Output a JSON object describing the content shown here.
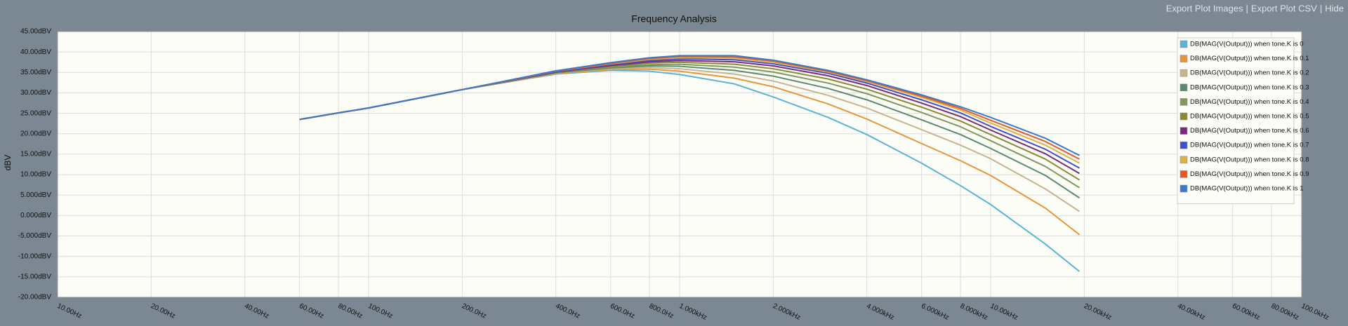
{
  "header": {
    "links": [
      "Export Plot Images",
      "Export Plot CSV",
      "Hide"
    ],
    "separator": "|"
  },
  "chart_data": {
    "type": "line",
    "title": "Frequency Analysis",
    "y_label": "dBV",
    "xscale": "log",
    "grid": true,
    "legend": "upper right",
    "xlim": [
      10,
      100000
    ],
    "ylim": [
      -20,
      45
    ],
    "xticks": [
      {
        "value": 10,
        "label": "10.00Hz"
      },
      {
        "value": 20,
        "label": "20.00Hz"
      },
      {
        "value": 40,
        "label": "40.00Hz"
      },
      {
        "value": 60,
        "label": "60.00Hz"
      },
      {
        "value": 80,
        "label": "80.00Hz"
      },
      {
        "value": 100,
        "label": "100.0Hz"
      },
      {
        "value": 200,
        "label": "200.0Hz"
      },
      {
        "value": 400,
        "label": "400.0Hz"
      },
      {
        "value": 600,
        "label": "600.0Hz"
      },
      {
        "value": 800,
        "label": "800.0Hz"
      },
      {
        "value": 1000,
        "label": "1.000kHz"
      },
      {
        "value": 2000,
        "label": "2.000kHz"
      },
      {
        "value": 4000,
        "label": "4.000kHz"
      },
      {
        "value": 6000,
        "label": "6.000kHz"
      },
      {
        "value": 8000,
        "label": "8.000kHz"
      },
      {
        "value": 10000,
        "label": "10.00kHz"
      },
      {
        "value": 20000,
        "label": "20.00kHz"
      },
      {
        "value": 40000,
        "label": "40.00kHz"
      },
      {
        "value": 60000,
        "label": "60.00kHz"
      },
      {
        "value": 80000,
        "label": "80.00kHz"
      },
      {
        "value": 100000,
        "label": "100.0kHz"
      }
    ],
    "yticks": [
      {
        "value": 45,
        "label": "45.00dBV"
      },
      {
        "value": 40,
        "label": "40.00dBV"
      },
      {
        "value": 35,
        "label": "35.00dBV"
      },
      {
        "value": 30,
        "label": "30.00dBV"
      },
      {
        "value": 25,
        "label": "25.00dBV"
      },
      {
        "value": 20,
        "label": "20.00dBV"
      },
      {
        "value": 15,
        "label": "15.00dBV"
      },
      {
        "value": 10,
        "label": "10.00dBV"
      },
      {
        "value": 5,
        "label": "5.000dBV"
      },
      {
        "value": 0,
        "label": "0.000dBV"
      },
      {
        "value": -5,
        "label": "-5.000dBV"
      },
      {
        "value": -10,
        "label": "-10.00dBV"
      },
      {
        "value": -15,
        "label": "-15.00dBV"
      },
      {
        "value": -20,
        "label": "-20.00dBV"
      }
    ],
    "x": [
      60,
      80,
      100,
      200,
      400,
      600,
      800,
      1000,
      1500,
      2000,
      3000,
      4000,
      6000,
      8000,
      10000,
      15000,
      19300
    ],
    "series": [
      {
        "name": "DB(MAG(V(Output))) when tone.K is 0",
        "color": "#5ab4d6",
        "values": [
          23.5,
          25.1,
          26.3,
          30.8,
          34.6,
          35.5,
          35.3,
          34.5,
          32.2,
          29.0,
          24.0,
          19.8,
          12.8,
          7.3,
          2.7,
          -7.0,
          -13.7
        ]
      },
      {
        "name": "DB(MAG(V(Output))) when tone.K is 0.1",
        "color": "#e8953a",
        "values": [
          23.5,
          25.1,
          26.3,
          30.8,
          34.7,
          35.7,
          35.8,
          35.3,
          33.6,
          31.5,
          27.3,
          23.6,
          17.6,
          13.4,
          9.8,
          1.8,
          -4.7
        ]
      },
      {
        "name": "DB(MAG(V(Output))) when tone.K is 0.2",
        "color": "#c8b48c",
        "values": [
          23.5,
          25.1,
          26.3,
          30.8,
          34.8,
          35.9,
          36.2,
          35.9,
          34.6,
          32.9,
          29.4,
          26.3,
          21.0,
          17.2,
          13.9,
          6.5,
          1.0
        ]
      },
      {
        "name": "DB(MAG(V(Output))) when tone.K is 0.3",
        "color": "#5a8a6e",
        "values": [
          23.5,
          25.1,
          26.3,
          30.8,
          34.9,
          36.1,
          36.6,
          36.5,
          35.5,
          34.1,
          31.1,
          28.3,
          23.4,
          19.8,
          16.4,
          9.8,
          4.3
        ]
      },
      {
        "name": "DB(MAG(V(Output))) when tone.K is 0.4",
        "color": "#7e9a5a",
        "values": [
          23.5,
          25.1,
          26.3,
          30.8,
          35.0,
          36.3,
          36.9,
          37.0,
          36.3,
          35.1,
          32.4,
          29.8,
          25.2,
          21.7,
          18.3,
          12.0,
          6.8
        ]
      },
      {
        "name": "DB(MAG(V(Output))) when tone.K is 0.5",
        "color": "#8a8a30",
        "values": [
          23.5,
          25.1,
          26.3,
          30.8,
          35.0,
          36.5,
          37.3,
          37.5,
          37.0,
          35.9,
          33.4,
          30.9,
          26.5,
          23.1,
          19.8,
          13.8,
          8.7
        ]
      },
      {
        "name": "DB(MAG(V(Output))) when tone.K is 0.6",
        "color": "#7a2a7a",
        "values": [
          23.5,
          25.1,
          26.3,
          30.8,
          35.1,
          36.7,
          37.6,
          37.9,
          37.6,
          36.6,
          34.2,
          31.8,
          27.5,
          24.2,
          20.9,
          15.1,
          10.3
        ]
      },
      {
        "name": "DB(MAG(V(Output))) when tone.K is 0.7",
        "color": "#4050d0",
        "values": [
          23.5,
          25.1,
          26.3,
          30.8,
          35.2,
          36.9,
          37.9,
          38.3,
          38.1,
          37.1,
          34.8,
          32.4,
          28.3,
          25.1,
          21.8,
          16.2,
          11.6
        ]
      },
      {
        "name": "DB(MAG(V(Output))) when tone.K is 0.8",
        "color": "#e0b040",
        "values": [
          23.5,
          25.1,
          26.3,
          30.8,
          35.3,
          37.1,
          38.2,
          38.6,
          38.5,
          37.5,
          35.1,
          32.8,
          28.9,
          25.8,
          22.6,
          17.2,
          12.8
        ]
      },
      {
        "name": "DB(MAG(V(Output))) when tone.K is 0.9",
        "color": "#e05a2a",
        "values": [
          23.5,
          25.1,
          26.3,
          30.8,
          35.3,
          37.2,
          38.4,
          38.9,
          38.8,
          37.8,
          35.3,
          33.0,
          29.2,
          26.2,
          23.3,
          18.1,
          13.8
        ]
      },
      {
        "name": "DB(MAG(V(Output))) when tone.K is 1",
        "color": "#3a7ac8",
        "values": [
          23.5,
          25.1,
          26.3,
          30.8,
          35.4,
          37.4,
          38.6,
          39.1,
          39.1,
          38.0,
          35.5,
          33.2,
          29.5,
          26.6,
          24.0,
          18.9,
          14.7
        ]
      }
    ]
  }
}
